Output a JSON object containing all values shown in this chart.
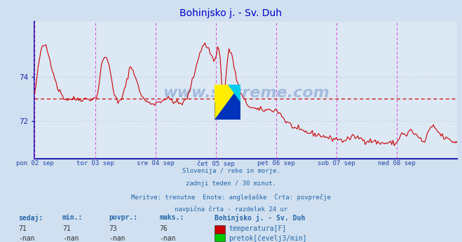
{
  "title": "Bohinjsko j. - Sv. Duh",
  "title_color": "#0000cc",
  "bg_color": "#d0e0f0",
  "plot_bg_color": "#dce8f4",
  "grid_color": "#b0b8c8",
  "axis_color": "#2222aa",
  "temp_line_color": "#cc0000",
  "avg_line_color": "#cc0000",
  "avg_line_value": 73,
  "vline_color": "#dd44dd",
  "ylim": [
    70.3,
    76.5
  ],
  "yticks": [
    72,
    74
  ],
  "day_labels": [
    "pon 02 sep",
    "tor 03 sep",
    "sre 04 sep",
    "čet 05 sep",
    "pet 06 sep",
    "sob 07 sep",
    "ned 08 sep"
  ],
  "xlabel_color": "#2244aa",
  "text_color": "#2266aa",
  "watermark": "www.si-vreme.com",
  "watermark_color": "#2255aa",
  "subtitle_lines": [
    "Slovenija / reke in morje.",
    "zadnji teden / 30 minut.",
    "Meritve: trenutne  Enote: anglešaške  Črta: povprečje",
    "navpična črta - razdelek 24 ur"
  ],
  "legend_title": "Bohinjsko j. - Sv. Duh",
  "stats_headers": [
    "sedaj:",
    "min.:",
    "povpr.:",
    "maks.:"
  ],
  "stats_temp": [
    "71",
    "71",
    "73",
    "76"
  ],
  "stats_flow": [
    "-nan",
    "-nan",
    "-nan",
    "-nan"
  ],
  "legend_temp": "temperatura[F]",
  "legend_flow": "pretok[čevelj3/min]",
  "temp_color_box": "#cc0000",
  "flow_color_box": "#00cc00",
  "num_points": 336,
  "seed": 42
}
